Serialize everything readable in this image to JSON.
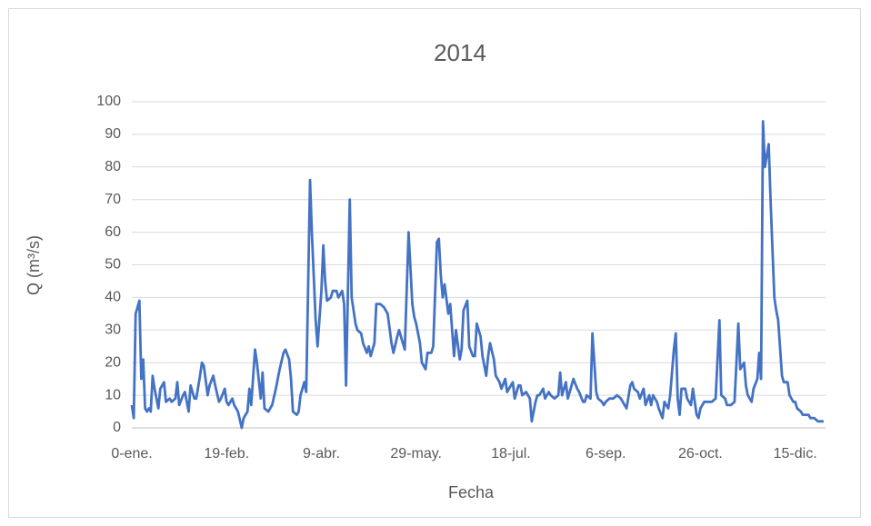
{
  "chart_data": {
    "type": "line",
    "title": "2014",
    "xlabel": "Fecha",
    "ylabel": "Q (m³/s)",
    "x": [
      0,
      1,
      2,
      4,
      5,
      6,
      7,
      8,
      9,
      10,
      11,
      12,
      14,
      15,
      17,
      18,
      20,
      21,
      23,
      24,
      25,
      27,
      28,
      30,
      31,
      33,
      34,
      36,
      37,
      38,
      40,
      41,
      43,
      44,
      46,
      47,
      49,
      50,
      51,
      53,
      54,
      56,
      58,
      59,
      61,
      62,
      63,
      65,
      66,
      68,
      69,
      70,
      72,
      74,
      76,
      78,
      80,
      81,
      83,
      84,
      85,
      87,
      88,
      89,
      91,
      92,
      94,
      95,
      97,
      98,
      100,
      101,
      102,
      103,
      105,
      106,
      108,
      109,
      111,
      112,
      113,
      115,
      116,
      118,
      119,
      121,
      122,
      124,
      125,
      126,
      128,
      129,
      131,
      133,
      135,
      137,
      138,
      140,
      141,
      143,
      144,
      146,
      148,
      149,
      150,
      152,
      153,
      155,
      156,
      158,
      159,
      161,
      162,
      163,
      164,
      165,
      167,
      168,
      170,
      171,
      173,
      174,
      175,
      177,
      178,
      180,
      181,
      182,
      184,
      185,
      187,
      188,
      189,
      191,
      192,
      194,
      195,
      197,
      198,
      200,
      201,
      202,
      204,
      205,
      206,
      208,
      210,
      211,
      213,
      214,
      215,
      217,
      218,
      220,
      221,
      223,
      225,
      226,
      227,
      229,
      230,
      232,
      233,
      235,
      236,
      238,
      239,
      240,
      242,
      243,
      245,
      246,
      248,
      249,
      250,
      252,
      254,
      256,
      258,
      260,
      261,
      263,
      264,
      265,
      267,
      268,
      270,
      271,
      273,
      274,
      275,
      277,
      278,
      280,
      281,
      283,
      284,
      286,
      287,
      288,
      289,
      290,
      292,
      293,
      295,
      296,
      298,
      299,
      300,
      302,
      304,
      306,
      308,
      310,
      311,
      313,
      314,
      316,
      318,
      320,
      321,
      323,
      324,
      325,
      327,
      328,
      330,
      331,
      332,
      333,
      334,
      336,
      337,
      339,
      340,
      341,
      343,
      344,
      346,
      347,
      349,
      350,
      351,
      353,
      354,
      356,
      357,
      358,
      360,
      362,
      363,
      365
    ],
    "series": [
      {
        "name": "Q",
        "color": "#4472c4",
        "values": [
          7,
          3,
          35,
          39,
          15,
          21,
          6,
          5,
          6,
          5,
          16,
          12,
          6,
          12,
          14,
          8,
          9,
          8,
          9,
          14,
          7,
          10,
          11,
          5,
          13,
          9,
          9,
          16,
          20,
          19,
          10,
          13,
          16,
          13,
          8,
          9,
          12,
          8,
          7,
          9,
          7,
          5,
          0,
          3,
          5,
          12,
          7,
          24,
          20,
          9,
          17,
          6,
          5,
          7,
          12,
          18,
          23,
          24,
          21,
          15,
          5,
          4,
          5,
          10,
          14,
          11,
          76,
          60,
          33,
          25,
          42,
          56,
          45,
          39,
          40,
          42,
          42,
          40,
          42,
          38,
          13,
          70,
          40,
          32,
          30,
          29,
          26,
          23,
          25,
          22,
          26,
          38,
          38,
          37,
          35,
          26,
          23,
          28,
          30,
          26,
          24,
          60,
          38,
          34,
          32,
          26,
          20,
          18,
          23,
          23,
          25,
          57,
          58,
          47,
          40,
          44,
          35,
          38,
          22,
          30,
          21,
          24,
          36,
          39,
          25,
          22,
          22,
          32,
          28,
          22,
          16,
          22,
          26,
          21,
          16,
          14,
          12,
          15,
          11,
          13,
          14,
          9,
          13,
          13,
          10,
          11,
          9,
          2,
          8,
          10,
          10,
          12,
          9,
          11,
          10,
          9,
          10,
          17,
          10,
          14,
          9,
          13,
          15,
          12,
          11,
          8,
          8,
          10,
          9,
          29,
          11,
          9,
          8,
          7,
          8,
          9,
          9,
          10,
          9,
          7,
          6,
          13,
          14,
          12,
          11,
          9,
          12,
          7,
          10,
          7,
          10,
          8,
          6,
          3,
          8,
          6,
          10,
          24,
          29,
          9,
          4,
          12,
          12,
          9,
          7,
          12,
          4,
          3,
          6,
          8,
          8,
          8,
          9,
          33,
          10,
          9,
          7,
          7,
          8,
          32,
          18,
          20,
          13,
          10,
          8,
          12,
          15,
          23,
          15,
          94,
          80,
          87,
          70,
          40,
          36,
          33,
          16,
          14,
          14,
          10,
          8,
          8,
          6,
          5,
          4,
          4,
          4,
          3,
          3,
          2,
          2,
          2
        ]
      }
    ],
    "xlim": [
      0,
      366
    ],
    "xticks": [
      {
        "value": 0,
        "label": "0-ene."
      },
      {
        "value": 50,
        "label": "19-feb."
      },
      {
        "value": 100,
        "label": "9-abr."
      },
      {
        "value": 150,
        "label": "29-may."
      },
      {
        "value": 200,
        "label": "18-jul."
      },
      {
        "value": 250,
        "label": "6-sep."
      },
      {
        "value": 300,
        "label": "26-oct."
      },
      {
        "value": 350,
        "label": "15-dic."
      }
    ],
    "ylim": [
      0,
      100
    ],
    "yticks": [
      0,
      10,
      20,
      30,
      40,
      50,
      60,
      70,
      80,
      90,
      100
    ],
    "grid": true
  }
}
